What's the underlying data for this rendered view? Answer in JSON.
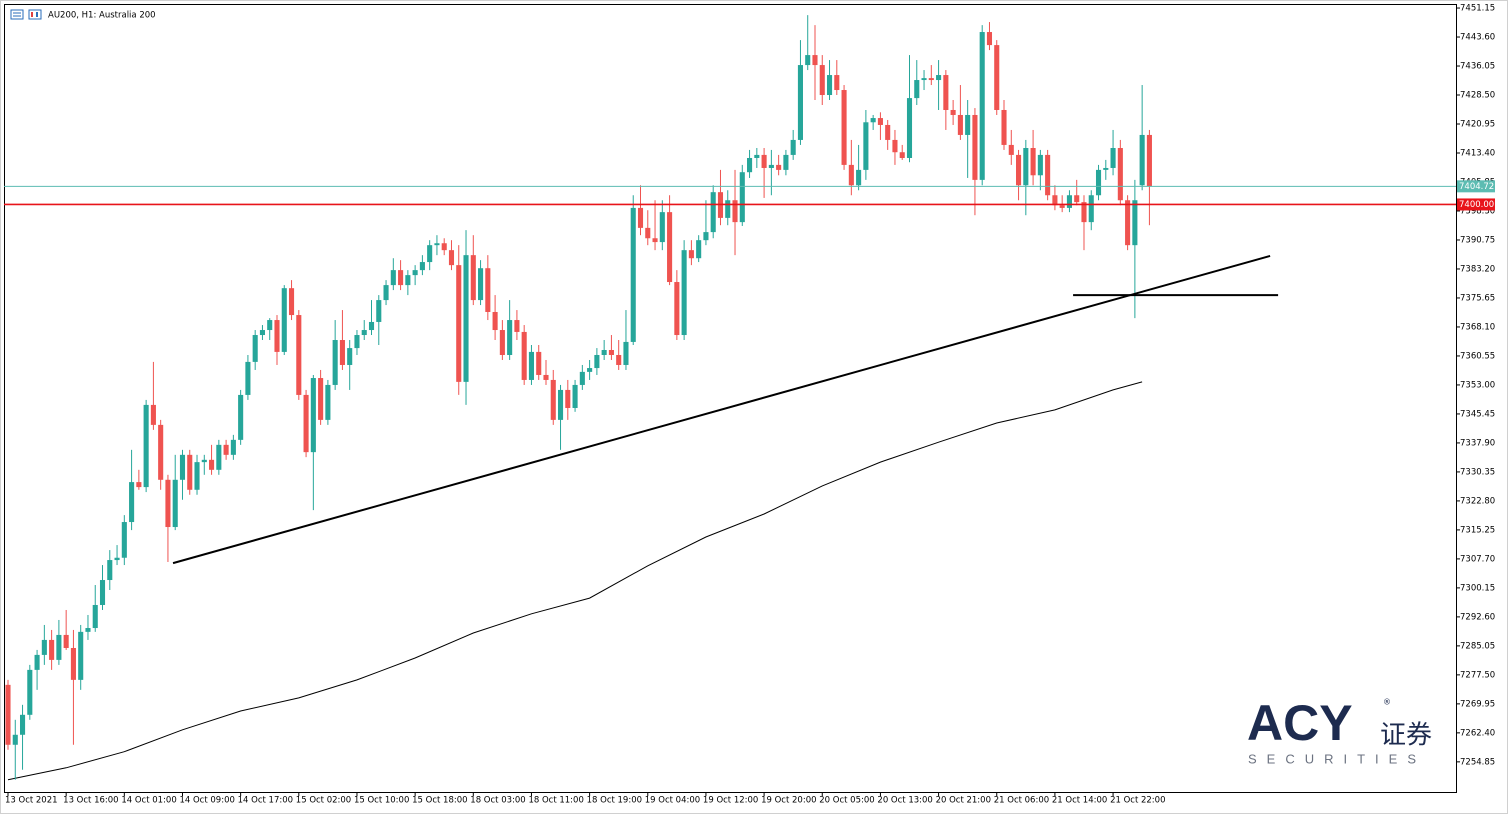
{
  "chart_data": {
    "type": "candlestick",
    "title": "AU200, H1:  Australia 200",
    "up_color": "#26a69a",
    "down_color": "#ef5350",
    "xlim": [
      -0.55,
      199.17
    ],
    "ylim": [
      7247.0,
      7452.2
    ],
    "yticks": [
      7451.15,
      {
        "value": 7443.6,
        "label": "7443.60"
      },
      7436.05,
      {
        "value": 7428.5,
        "label": "7428.50"
      },
      7420.95,
      {
        "value": 7413.4,
        "label": "7413.40"
      },
      7405.85,
      {
        "value": 7398.3,
        "label": "7398.30"
      },
      7390.75,
      {
        "value": 7383.2,
        "label": "7383.20"
      },
      7375.65,
      {
        "value": 7368.1,
        "label": "7368.10"
      },
      7360.55,
      {
        "value": 7353,
        "label": "7353.00"
      },
      7345.45,
      {
        "value": 7337.9,
        "label": "7337.90"
      },
      7330.35,
      {
        "value": 7322.8,
        "label": "7322.80"
      },
      7315.25,
      {
        "value": 7307.7,
        "label": "7307.70"
      },
      7300.15,
      {
        "value": 7292.6,
        "label": "7292.60"
      },
      7285.05,
      {
        "value": 7277.5,
        "label": "7277.50"
      },
      7269.95,
      {
        "value": 7262.4,
        "label": "7262.40"
      },
      7254.85
    ],
    "xticks": [
      {
        "value": 0,
        "label": "13 Oct 2021"
      },
      {
        "value": 8,
        "label": "13 Oct 16:00"
      },
      {
        "value": 16,
        "label": "14 Oct 01:00"
      },
      {
        "value": 24,
        "label": "14 Oct 09:00"
      },
      {
        "value": 32,
        "label": "14 Oct 17:00"
      },
      {
        "value": 40,
        "label": "15 Oct 02:00"
      },
      {
        "value": 48,
        "label": "15 Oct 10:00"
      },
      {
        "value": 56,
        "label": "15 Oct 18:00"
      },
      {
        "value": 64,
        "label": "18 Oct 03:00"
      },
      {
        "value": 72,
        "label": "18 Oct 11:00"
      },
      {
        "value": 80,
        "label": "18 Oct 19:00"
      },
      {
        "value": 88,
        "label": "19 Oct 04:00"
      },
      {
        "value": 96,
        "label": "19 Oct 12:00"
      },
      {
        "value": 104,
        "label": "19 Oct 20:00"
      },
      {
        "value": 112,
        "label": "20 Oct 05:00"
      },
      {
        "value": 120,
        "label": "20 Oct 13:00"
      },
      {
        "value": 128,
        "label": "20 Oct 21:00"
      },
      {
        "value": 136,
        "label": "21 Oct 06:00"
      },
      {
        "value": 144,
        "label": "21 Oct 14:00"
      },
      {
        "value": 152,
        "label": "21 Oct 22:00"
      }
    ],
    "candles": [
      [
        7274.9,
        7276.2,
        7258.0,
        7259.3
      ],
      [
        7259.3,
        7265.8,
        7250.2,
        7261.9
      ],
      [
        7261.9,
        7269.7,
        7252.8,
        7267.1
      ],
      [
        7267.1,
        7280.1,
        7265.8,
        7278.8
      ],
      [
        7278.8,
        7284.0,
        7273.6,
        7282.7
      ],
      [
        7282.7,
        7290.5,
        7280.1,
        7286.6
      ],
      [
        7286.6,
        7289.2,
        7278.8,
        7281.4
      ],
      [
        7281.4,
        7291.8,
        7280.1,
        7287.9
      ],
      [
        7287.9,
        7294.4,
        7284.0,
        7284.5
      ],
      [
        7284.5,
        7289.2,
        7259.3,
        7276.2
      ],
      [
        7276.2,
        7290.5,
        7273.6,
        7288.7
      ],
      [
        7288.7,
        7293.1,
        7286.6,
        7289.7
      ],
      [
        7289.7,
        7300.9,
        7288.7,
        7295.7
      ],
      [
        7295.7,
        7306.1,
        7294.4,
        7302.2
      ],
      [
        7302.2,
        7310.0,
        7299.6,
        7307.4
      ],
      [
        7307.4,
        7311.3,
        7306.1,
        7308.0
      ],
      [
        7308.0,
        7319.1,
        7306.1,
        7317.3
      ],
      [
        7317.3,
        7336.1,
        7315.2,
        7327.7
      ],
      [
        7327.7,
        7330.9,
        7325.7,
        7326.4
      ],
      [
        7326.4,
        7349.1,
        7325.1,
        7347.8
      ],
      [
        7347.8,
        7359.0,
        7341.3,
        7342.6
      ],
      [
        7342.6,
        7343.9,
        7325.7,
        7328.3
      ],
      [
        7328.3,
        7329.6,
        7306.9,
        7316.0
      ],
      [
        7316.0,
        7334.8,
        7315.2,
        7328.3
      ],
      [
        7328.3,
        7336.1,
        7323.1,
        7334.8
      ],
      [
        7334.8,
        7336.1,
        7324.4,
        7325.7
      ],
      [
        7325.7,
        7334.8,
        7324.4,
        7332.9
      ],
      [
        7332.9,
        7334.8,
        7329.6,
        7333.5
      ],
      [
        7333.5,
        7337.4,
        7329.6,
        7330.9
      ],
      [
        7330.9,
        7338.7,
        7329.6,
        7337.4
      ],
      [
        7337.4,
        7338.7,
        7333.5,
        7334.8
      ],
      [
        7334.8,
        7340.0,
        7333.5,
        7338.7
      ],
      [
        7338.7,
        7351.7,
        7337.4,
        7350.4
      ],
      [
        7350.4,
        7360.8,
        7349.1,
        7359.0
      ],
      [
        7359.0,
        7367.3,
        7356.9,
        7366.0
      ],
      [
        7366.0,
        7368.6,
        7364.7,
        7367.3
      ],
      [
        7367.3,
        7370.4,
        7364.7,
        7369.9
      ],
      [
        7369.9,
        7371.2,
        7358.2,
        7361.6
      ],
      [
        7361.6,
        7379.0,
        7360.8,
        7378.2
      ],
      [
        7378.2,
        7380.3,
        7369.9,
        7371.2
      ],
      [
        7371.2,
        7372.5,
        7349.1,
        7350.4
      ],
      [
        7350.4,
        7351.7,
        7334.2,
        7335.5
      ],
      [
        7335.5,
        7355.6,
        7320.4,
        7354.8
      ],
      [
        7354.8,
        7356.9,
        7342.6,
        7343.9
      ],
      [
        7343.9,
        7354.3,
        7342.6,
        7353.0
      ],
      [
        7353.0,
        7369.9,
        7351.7,
        7364.7
      ],
      [
        7364.7,
        7372.5,
        7356.9,
        7358.2
      ],
      [
        7358.2,
        7364.7,
        7351.7,
        7362.6
      ],
      [
        7362.6,
        7367.3,
        7360.8,
        7366.0
      ],
      [
        7366.0,
        7369.9,
        7364.7,
        7367.3
      ],
      [
        7367.3,
        7375.1,
        7366.0,
        7369.4
      ],
      [
        7369.4,
        7376.4,
        7363.4,
        7375.1
      ],
      [
        7375.1,
        7380.3,
        7373.8,
        7379.0
      ],
      [
        7379.0,
        7386.0,
        7377.7,
        7382.9
      ],
      [
        7382.9,
        7385.5,
        7377.7,
        7379.0
      ],
      [
        7379.0,
        7382.9,
        7376.4,
        7381.6
      ],
      [
        7381.6,
        7384.2,
        7379.0,
        7382.9
      ],
      [
        7382.9,
        7386.8,
        7381.6,
        7385.0
      ],
      [
        7385.0,
        7390.7,
        7382.9,
        7389.4
      ],
      [
        7389.4,
        7392.0,
        7386.8,
        7389.9
      ],
      [
        7389.9,
        7391.2,
        7386.8,
        7388.1
      ],
      [
        7388.1,
        7390.7,
        7382.9,
        7384.2
      ],
      [
        7384.2,
        7389.4,
        7350.4,
        7353.8
      ],
      [
        7353.8,
        7393.3,
        7347.8,
        7386.8
      ],
      [
        7386.8,
        7392.0,
        7373.8,
        7375.1
      ],
      [
        7375.1,
        7385.5,
        7373.8,
        7383.4
      ],
      [
        7383.4,
        7386.8,
        7369.9,
        7372.0
      ],
      [
        7372.0,
        7376.4,
        7364.7,
        7367.3
      ],
      [
        7367.3,
        7369.9,
        7359.5,
        7360.8
      ],
      [
        7360.8,
        7375.1,
        7359.5,
        7369.9
      ],
      [
        7369.9,
        7372.5,
        7364.7,
        7366.8
      ],
      [
        7366.8,
        7368.6,
        7353.0,
        7354.3
      ],
      [
        7354.3,
        7363.4,
        7353.0,
        7361.6
      ],
      [
        7361.6,
        7363.4,
        7354.3,
        7355.6
      ],
      [
        7355.6,
        7359.5,
        7353.0,
        7354.3
      ],
      [
        7354.3,
        7356.9,
        7342.6,
        7343.9
      ],
      [
        7343.9,
        7353.0,
        7336.1,
        7351.7
      ],
      [
        7351.7,
        7354.3,
        7343.9,
        7347.0
      ],
      [
        7347.0,
        7354.3,
        7346.0,
        7353.0
      ],
      [
        7353.0,
        7358.2,
        7351.7,
        7356.4
      ],
      [
        7356.4,
        7359.5,
        7354.3,
        7357.4
      ],
      [
        7357.4,
        7362.6,
        7355.6,
        7360.8
      ],
      [
        7360.8,
        7364.7,
        7359.5,
        7362.1
      ],
      [
        7362.1,
        7366.0,
        7359.5,
        7360.8
      ],
      [
        7360.8,
        7364.7,
        7356.9,
        7358.2
      ],
      [
        7358.2,
        7372.5,
        7356.9,
        7364.2
      ],
      [
        7364.2,
        7402.4,
        7363.4,
        7399.1
      ],
      [
        7399.1,
        7405.0,
        7392.0,
        7393.9
      ],
      [
        7393.9,
        7398.5,
        7389.4,
        7391.2
      ],
      [
        7391.2,
        7401.1,
        7388.1,
        7390.2
      ],
      [
        7390.2,
        7401.1,
        7388.1,
        7398.0
      ],
      [
        7398.0,
        7402.4,
        7379.0,
        7379.8
      ],
      [
        7379.8,
        7382.9,
        7364.7,
        7366.0
      ],
      [
        7366.0,
        7390.7,
        7364.7,
        7388.1
      ],
      [
        7388.1,
        7390.7,
        7384.2,
        7386.0
      ],
      [
        7386.0,
        7392.0,
        7385.0,
        7390.7
      ],
      [
        7390.7,
        7401.1,
        7389.4,
        7392.8
      ],
      [
        7392.8,
        7405.0,
        7391.2,
        7403.2
      ],
      [
        7403.2,
        7409.0,
        7394.6,
        7396.5
      ],
      [
        7396.5,
        7403.7,
        7394.6,
        7401.1
      ],
      [
        7401.1,
        7409.0,
        7386.8,
        7395.4
      ],
      [
        7395.4,
        7410.3,
        7394.4,
        7408.4
      ],
      [
        7408.4,
        7414.2,
        7406.9,
        7412.1
      ],
      [
        7412.1,
        7414.7,
        7409.5,
        7412.9
      ],
      [
        7412.9,
        7414.7,
        7401.7,
        7409.5
      ],
      [
        7409.5,
        7414.2,
        7402.4,
        7410.3
      ],
      [
        7410.3,
        7412.9,
        7407.6,
        7409.0
      ],
      [
        7409.0,
        7414.2,
        7407.6,
        7412.9
      ],
      [
        7412.9,
        7419.4,
        7411.6,
        7416.8
      ],
      [
        7416.8,
        7442.8,
        7415.5,
        7436.3
      ],
      [
        7436.3,
        7449.3,
        7435.0,
        7438.9
      ],
      [
        7438.9,
        7446.7,
        7427.2,
        7436.3
      ],
      [
        7436.3,
        7438.9,
        7425.9,
        7428.5
      ],
      [
        7428.5,
        7437.6,
        7427.2,
        7433.7
      ],
      [
        7433.7,
        7437.6,
        7428.5,
        7429.8
      ],
      [
        7429.8,
        7431.1,
        7409.0,
        7410.3
      ],
      [
        7410.3,
        7416.8,
        7402.4,
        7405.0
      ],
      [
        7405.0,
        7415.5,
        7403.7,
        7409.0
      ],
      [
        7409.0,
        7424.6,
        7406.4,
        7421.4
      ],
      [
        7421.4,
        7423.3,
        7419.4,
        7422.5
      ],
      [
        7422.5,
        7424.0,
        7416.8,
        7420.7
      ],
      [
        7420.7,
        7422.0,
        7414.2,
        7416.8
      ],
      [
        7416.8,
        7419.4,
        7410.3,
        7413.6
      ],
      [
        7413.6,
        7415.5,
        7411.6,
        7412.1
      ],
      [
        7412.1,
        7438.9,
        7411.0,
        7427.7
      ],
      [
        7427.7,
        7437.6,
        7425.9,
        7432.4
      ],
      [
        7432.4,
        7435.0,
        7429.8,
        7432.9
      ],
      [
        7432.9,
        7436.3,
        7431.1,
        7432.4
      ],
      [
        7432.4,
        7437.6,
        7424.6,
        7433.7
      ],
      [
        7433.7,
        7435.0,
        7419.4,
        7424.6
      ],
      [
        7424.6,
        7427.2,
        7420.7,
        7423.3
      ],
      [
        7423.3,
        7431.1,
        7416.8,
        7418.1
      ],
      [
        7418.1,
        7427.2,
        7406.9,
        7423.3
      ],
      [
        7423.3,
        7425.1,
        7397.2,
        7406.4
      ],
      [
        7406.4,
        7446.7,
        7405.0,
        7444.9
      ],
      [
        7444.9,
        7447.5,
        7440.2,
        7441.5
      ],
      [
        7441.5,
        7442.8,
        7423.3,
        7424.6
      ],
      [
        7424.6,
        7427.2,
        7414.2,
        7415.5
      ],
      [
        7415.5,
        7419.4,
        7410.3,
        7412.9
      ],
      [
        7412.9,
        7414.2,
        7401.1,
        7405.0
      ],
      [
        7405.0,
        7416.8,
        7397.2,
        7414.7
      ],
      [
        7414.7,
        7419.4,
        7405.0,
        7407.6
      ],
      [
        7407.6,
        7414.2,
        7403.7,
        7412.9
      ],
      [
        7412.9,
        7414.2,
        7401.1,
        7402.4
      ],
      [
        7402.4,
        7405.0,
        7398.5,
        7399.8
      ],
      [
        7399.8,
        7402.4,
        7398.0,
        7399.1
      ],
      [
        7399.1,
        7403.7,
        7398.0,
        7402.4
      ],
      [
        7402.4,
        7406.4,
        7399.8,
        7400.6
      ],
      [
        7400.6,
        7402.4,
        7388.1,
        7395.4
      ],
      [
        7395.4,
        7403.7,
        7393.3,
        7402.4
      ],
      [
        7402.4,
        7410.3,
        7401.1,
        7409.0
      ],
      [
        7409.0,
        7411.6,
        7406.4,
        7409.5
      ],
      [
        7409.5,
        7419.4,
        7407.6,
        7414.7
      ],
      [
        7414.7,
        7416.8,
        7399.8,
        7401.1
      ],
      [
        7401.1,
        7402.4,
        7388.1,
        7389.4
      ],
      [
        7389.4,
        7406.4,
        7370.4,
        7401.1
      ],
      [
        7405.0,
        7431.1,
        7403.7,
        7418.1
      ],
      [
        7418.1,
        7419.4,
        7394.6,
        7404.72
      ]
    ],
    "moving_average": {
      "color": "#000000",
      "x": [
        0,
        8,
        16,
        24,
        32,
        40,
        48,
        56,
        64,
        72,
        80,
        88,
        96,
        104,
        112,
        120,
        128,
        136,
        144,
        152,
        156
      ],
      "values": [
        7250.2,
        7253.3,
        7257.5,
        7263.2,
        7268.1,
        7271.5,
        7276.2,
        7281.9,
        7288.4,
        7293.4,
        7297.5,
        7305.9,
        7313.4,
        7319.4,
        7326.7,
        7332.9,
        7338.1,
        7343.1,
        7346.5,
        7351.7,
        7353.8
      ]
    },
    "trendlines": [
      {
        "color": "#000000",
        "x": [
          22.7,
          173.6
        ],
        "y": [
          7306.6,
          7386.6
        ]
      },
      {
        "color": "#000000",
        "x": [
          146.5,
          174.7
        ],
        "y": [
          7376.4,
          7376.4
        ]
      }
    ],
    "price_lines": [
      {
        "value": 7404.72,
        "color": "#5cbcb2"
      },
      {
        "value": 7400,
        "label": "7400.00",
        "color": "#e8141a"
      }
    ]
  },
  "watermark": {
    "brand": "ACY",
    "mark": "®",
    "chinese": "证券",
    "subtitle": "SECURITIES"
  }
}
